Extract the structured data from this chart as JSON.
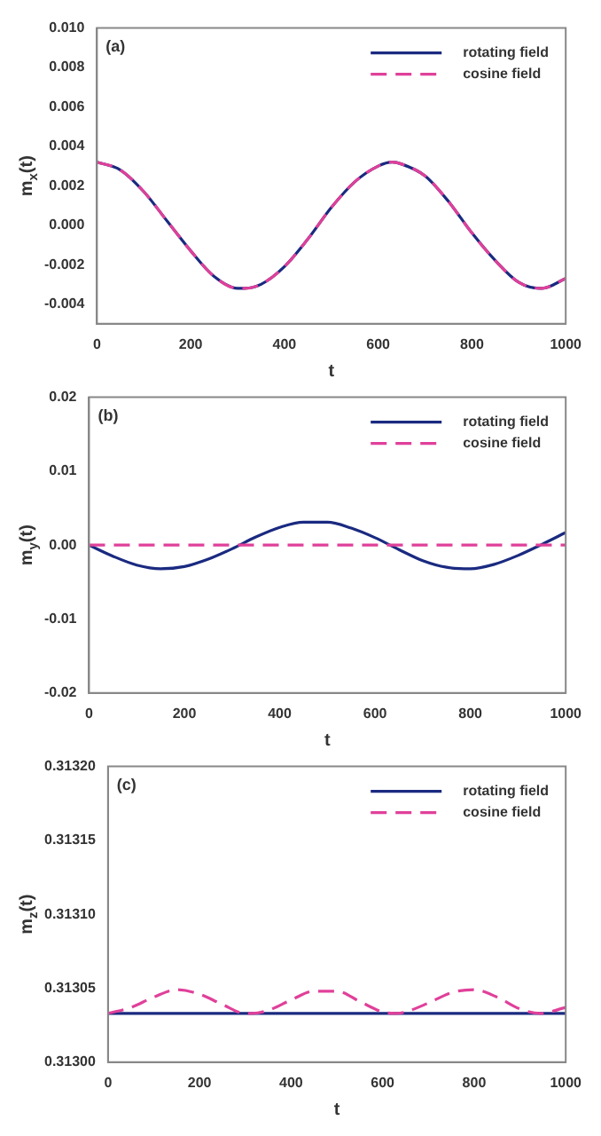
{
  "chart_data": [
    {
      "type": "line",
      "annotations": [
        "(a)"
      ],
      "xlabel": "t",
      "ylabel": "m$_{x}$(t)",
      "xlim": [
        0,
        1000
      ],
      "xticks": [
        0,
        200,
        400,
        600,
        800,
        1000
      ],
      "ylim": [
        -0.005,
        0.01
      ],
      "yticks": [
        {
          "value": -0.004,
          "label": "-0.004"
        },
        -0.002,
        {
          "value": 0,
          "label": "0.000"
        },
        0.002,
        0.004,
        0.006,
        0.008,
        {
          "value": 0.01,
          "label": "0.010"
        }
      ],
      "grid": false,
      "legend": "top right",
      "marker": "none",
      "x": [
        0,
        50,
        100,
        150,
        200,
        250,
        300,
        315,
        350,
        400,
        450,
        500,
        550,
        600,
        630,
        650,
        700,
        750,
        800,
        850,
        900,
        945,
        950,
        1000
      ],
      "series": [
        {
          "name": "rotating field",
          "color": "#1a2a80",
          "line_style": "solid",
          "values": [
            0.0032,
            0.0028,
            0.0017,
            0.0002,
            -0.0013,
            -0.0026,
            -0.0032,
            -0.0032,
            -0.003,
            -0.0021,
            -0.0007,
            0.0009,
            0.0022,
            0.003,
            0.0032,
            0.0031,
            0.0025,
            0.0012,
            -0.0004,
            -0.0018,
            -0.0029,
            -0.0032,
            -0.0032,
            -0.0027
          ]
        },
        {
          "name": "cosine field",
          "color": "#e0409a",
          "line_style": "dashed",
          "values": [
            0.0032,
            0.0028,
            0.0017,
            0.0002,
            -0.0013,
            -0.0026,
            -0.0032,
            -0.0032,
            -0.003,
            -0.0021,
            -0.0007,
            0.0009,
            0.0022,
            0.003,
            0.0032,
            0.0031,
            0.0025,
            0.0012,
            -0.0004,
            -0.0018,
            -0.0029,
            -0.0032,
            -0.0032,
            -0.0027
          ]
        }
      ]
    },
    {
      "type": "line",
      "annotations": [
        "(b)"
      ],
      "xlabel": "t",
      "ylabel": "m$_{y}$(t)",
      "xlim": [
        0,
        1000
      ],
      "xticks": [
        0,
        200,
        400,
        600,
        800,
        1000
      ],
      "ylim": [
        -0.02,
        0.02
      ],
      "yticks": [
        -0.02,
        -0.01,
        {
          "value": 0,
          "label": "0.00"
        },
        0.01,
        0.02
      ],
      "grid": false,
      "legend": "top right",
      "marker": "none",
      "x": [
        0,
        50,
        100,
        150,
        200,
        250,
        300,
        350,
        400,
        450,
        500,
        550,
        600,
        650,
        700,
        750,
        800,
        850,
        900,
        950,
        1000
      ],
      "series": [
        {
          "name": "rotating field",
          "color": "#1a2a80",
          "line_style": "solid",
          "values": [
            0,
            -0.0015,
            -0.0027,
            -0.0032,
            -0.0029,
            -0.0019,
            -0.0005,
            0.0011,
            0.0024,
            0.0031,
            0.0031,
            0.0023,
            0.001,
            -0.0006,
            -0.0021,
            -0.003,
            -0.0032,
            -0.0026,
            -0.0014,
            0.0001,
            0.0017
          ]
        },
        {
          "name": "cosine field",
          "color": "#e0409a",
          "line_style": "dashed",
          "values": [
            0,
            0,
            0,
            0,
            0,
            0,
            0,
            0,
            0,
            0,
            0,
            0,
            0,
            0,
            0,
            0,
            0,
            0,
            0,
            0,
            0
          ]
        }
      ]
    },
    {
      "type": "line",
      "annotations": [
        "(c)"
      ],
      "xlabel": "t",
      "ylabel": "m$_{z}$(t)",
      "xlim": [
        0,
        1000
      ],
      "xticks": [
        0,
        200,
        400,
        600,
        800,
        1000
      ],
      "ylim": [
        0.313,
        0.3132
      ],
      "yticks": [
        {
          "value": 0.313,
          "label": "0.31300"
        },
        0.31305,
        {
          "value": 0.3131,
          "label": "0.31310"
        },
        0.31315,
        {
          "value": 0.3132,
          "label": "0.31320"
        }
      ],
      "grid": false,
      "legend": "top right",
      "marker": "none",
      "x": [
        0,
        50,
        100,
        150,
        200,
        250,
        300,
        315,
        350,
        400,
        450,
        500,
        550,
        600,
        630,
        650,
        700,
        750,
        800,
        850,
        900,
        945,
        1000
      ],
      "series": [
        {
          "name": "rotating field",
          "color": "#1a2a80",
          "line_style": "solid",
          "values": [
            0.313033,
            0.313033,
            0.313033,
            0.313033,
            0.313033,
            0.313033,
            0.313033,
            0.313033,
            0.313033,
            0.313033,
            0.313033,
            0.313033,
            0.313033,
            0.313033,
            0.313033,
            0.313033,
            0.313033,
            0.313033,
            0.313033,
            0.313033,
            0.313033,
            0.313033,
            0.313033
          ]
        },
        {
          "name": "cosine field",
          "color": "#e0409a",
          "line_style": "dashed",
          "values": [
            0.313033,
            0.313037,
            0.313044,
            0.313049,
            0.313046,
            0.313039,
            0.313033,
            0.313033,
            0.313035,
            0.313042,
            0.313048,
            0.313048,
            0.313041,
            0.313034,
            0.313033,
            0.313034,
            0.31304,
            0.313047,
            0.313049,
            0.313044,
            0.313036,
            0.313033,
            0.313037
          ]
        }
      ]
    }
  ]
}
